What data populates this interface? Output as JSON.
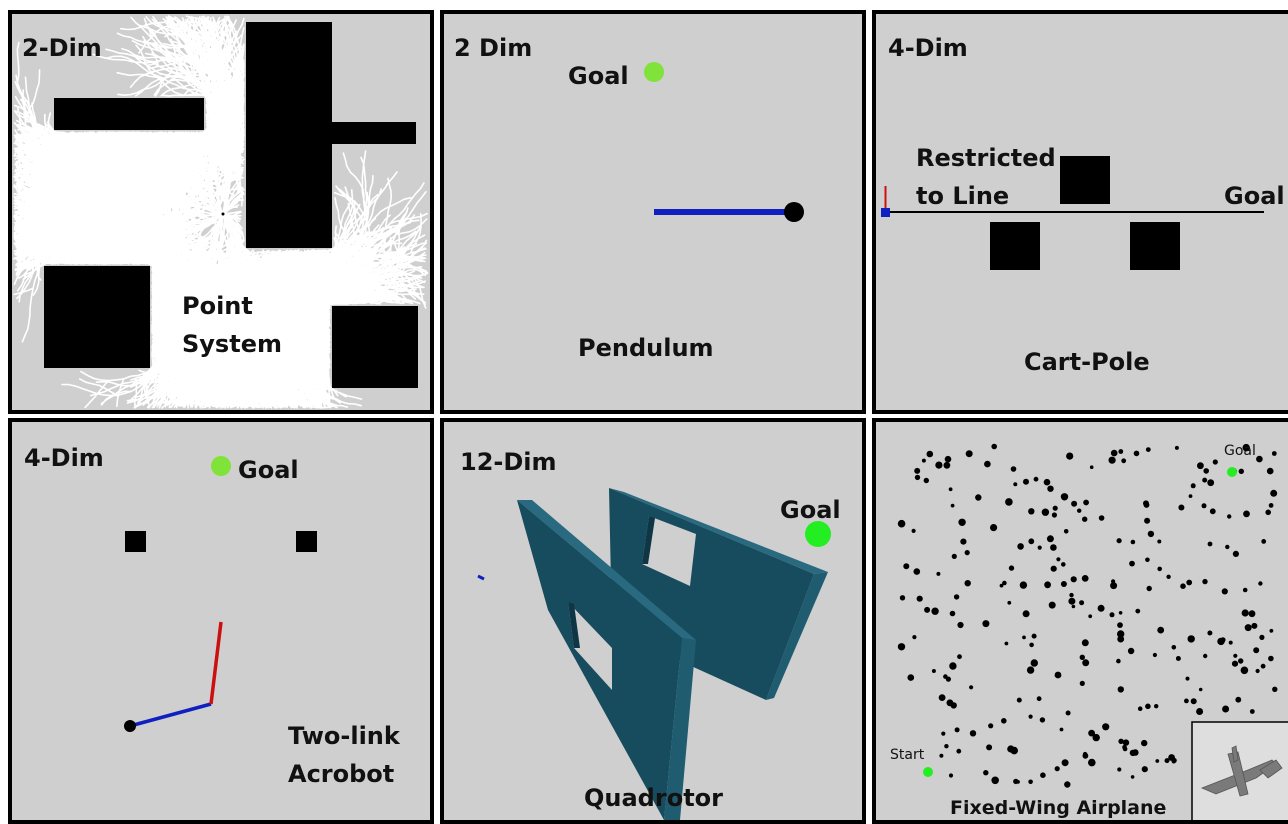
{
  "panels": {
    "point": {
      "dim": "2-Dim",
      "name_line1": "Point",
      "name_line2": "System"
    },
    "pendulum": {
      "dim": "2 Dim",
      "goal": "Goal",
      "name": "Pendulum"
    },
    "cartpole": {
      "dim": "4-Dim",
      "note_line1": "Restricted",
      "note_line2": "to Line",
      "goal": "Goal",
      "name": "Cart-Pole"
    },
    "acrobot": {
      "dim": "4-Dim",
      "goal": "Goal",
      "name_line1": "Two-link",
      "name_line2": "Acrobot"
    },
    "quadrotor": {
      "dim": "12-Dim",
      "goal": "Goal",
      "name": "Quadrotor"
    },
    "airplane": {
      "goal": "Goal",
      "start": "Start",
      "name": "Fixed-Wing Airplane"
    }
  },
  "colors": {
    "background": "#cfcfcf",
    "obstacle": "#000000",
    "tree": "#ffffff",
    "goal": "#7fe33a",
    "goal_bright": "#22ee22",
    "link_blue": "#1020c0",
    "link_red": "#cc1010",
    "wall": "#174b5e"
  }
}
